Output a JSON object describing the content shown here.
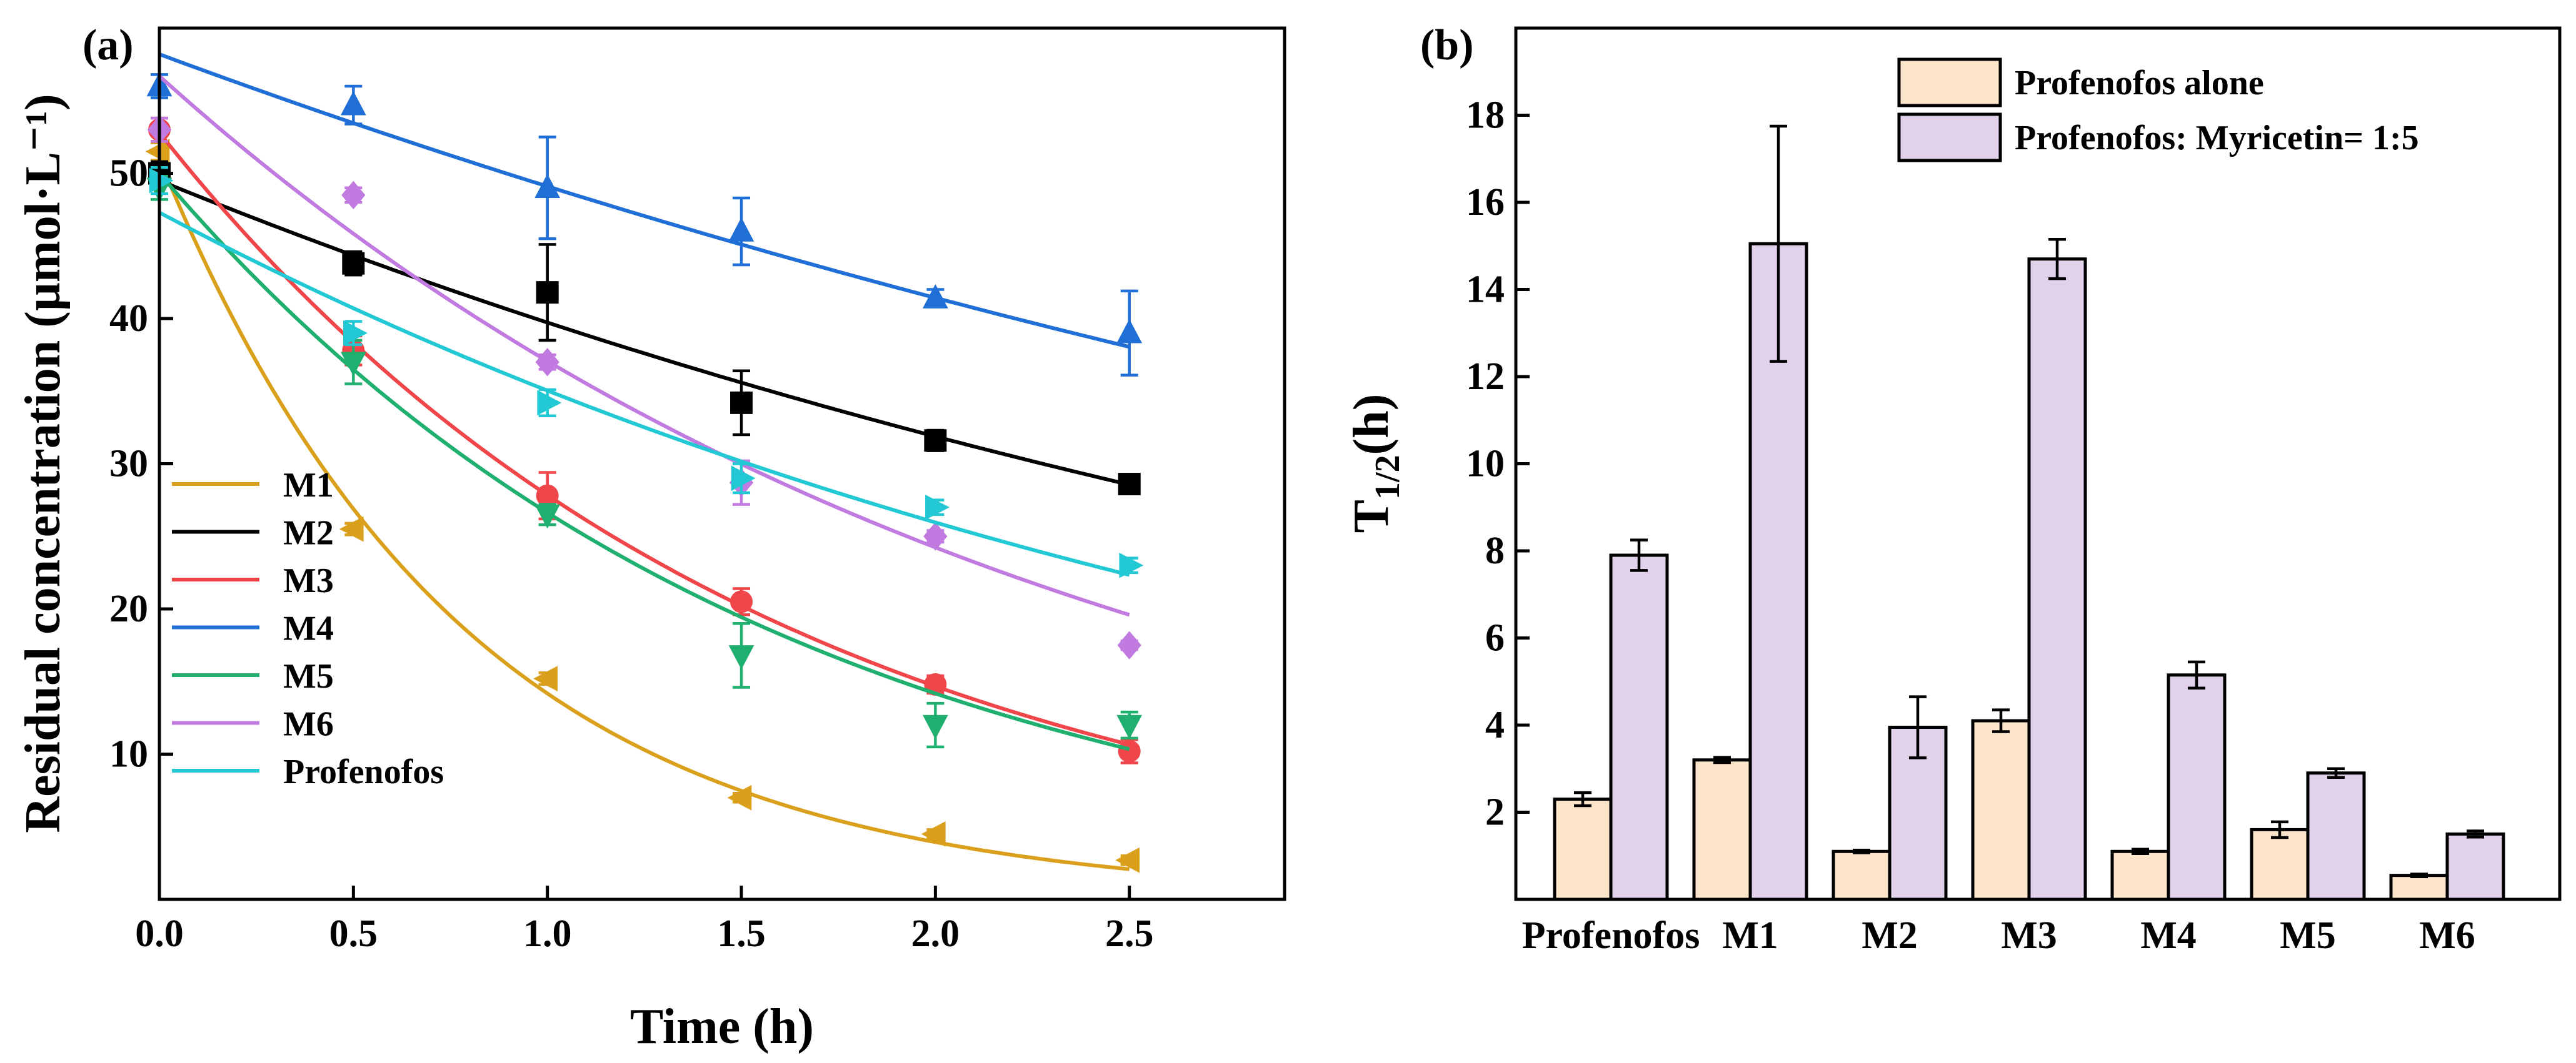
{
  "chart_data": [
    {
      "panel": "(a)",
      "type": "scatter",
      "xlabel": "Time (h)",
      "ylabel": "Residual concentration (µmol·L⁻¹)",
      "xlim": [
        0,
        2.9
      ],
      "ylim": [
        0,
        60
      ],
      "xticks": [
        0.0,
        0.5,
        1.0,
        1.5,
        2.0,
        2.5
      ],
      "xtick_labels": [
        "0.0",
        "0.5",
        "1.0",
        "1.5",
        "2.0",
        "2.5"
      ],
      "yticks": [
        10,
        20,
        30,
        40,
        50
      ],
      "ytick_labels": [
        "10",
        "20",
        "30",
        "40",
        "50"
      ],
      "legend_position": "bottom-left",
      "series": [
        {
          "name": "M1",
          "color": "#DAA01C",
          "marker": "triangle-left",
          "x": [
            0,
            0.5,
            1.0,
            1.5,
            2.0,
            2.5
          ],
          "y": [
            51.5,
            25.5,
            15.2,
            7.0,
            4.5,
            2.7
          ],
          "err": [
            0.6,
            0.4,
            0.4,
            0.3,
            0.3,
            0.3
          ],
          "fit": {
            "c0": 51.0,
            "k": 1.28
          }
        },
        {
          "name": "M2",
          "color": "#000000",
          "marker": "square",
          "x": [
            0,
            0.5,
            1.0,
            1.5,
            2.0,
            2.5
          ],
          "y": [
            50.0,
            43.8,
            41.8,
            34.2,
            31.6,
            28.6
          ],
          "err": [
            0.8,
            0.8,
            3.3,
            2.2,
            0.7,
            0.4
          ],
          "fit": {
            "c0": 49.5,
            "k": 0.22
          }
        },
        {
          "name": "M3",
          "color": "#F0464A",
          "marker": "circle",
          "x": [
            0,
            0.5,
            1.0,
            1.5,
            2.0,
            2.5
          ],
          "y": [
            53.0,
            37.8,
            27.8,
            20.5,
            14.8,
            10.2
          ],
          "err": [
            0.8,
            1.0,
            1.6,
            0.9,
            0.6,
            0.8
          ],
          "fit": {
            "c0": 52.8,
            "k": 0.64
          }
        },
        {
          "name": "M4",
          "color": "#1F6FD6",
          "marker": "triangle-up",
          "x": [
            0,
            0.5,
            1.0,
            1.5,
            2.0,
            2.5
          ],
          "y": [
            56.0,
            54.7,
            49.0,
            46.0,
            41.4,
            39.0
          ],
          "err": [
            0.8,
            1.3,
            3.5,
            2.3,
            0.6,
            2.9
          ],
          "fit": {
            "c0": 58.2,
            "k": 0.17
          }
        },
        {
          "name": "M5",
          "color": "#1FAF6E",
          "marker": "triangle-down",
          "x": [
            0,
            0.5,
            1.0,
            1.5,
            2.0,
            2.5
          ],
          "y": [
            49.0,
            37.0,
            26.5,
            16.8,
            12.0,
            12.0
          ],
          "err": [
            0.8,
            1.5,
            0.7,
            2.2,
            1.5,
            0.9
          ],
          "fit": {
            "c0": 50.0,
            "k": 0.63
          }
        },
        {
          "name": "M6",
          "color": "#C17BE0",
          "marker": "diamond",
          "x": [
            0,
            0.5,
            1.0,
            1.5,
            2.0,
            2.5
          ],
          "y": [
            53.0,
            48.5,
            37.0,
            28.7,
            25.0,
            17.5
          ],
          "err": [
            0.8,
            0.5,
            0.5,
            1.5,
            0.4,
            0.3
          ],
          "fit": {
            "c0": 56.7,
            "k": 0.425
          }
        },
        {
          "name": "Profenofos",
          "color": "#22C8D4",
          "marker": "triangle-right",
          "x": [
            0,
            0.5,
            1.0,
            1.5,
            2.0,
            2.5
          ],
          "y": [
            49.5,
            39.0,
            34.2,
            29.0,
            27.0,
            23.0
          ],
          "err": [
            0.9,
            0.8,
            0.9,
            1.0,
            0.5,
            0.5
          ],
          "fit": {
            "c0": 47.3,
            "k": 0.3
          }
        }
      ]
    },
    {
      "panel": "(b)",
      "type": "bar",
      "xlabel": "",
      "ylabel": "T1/2(h)",
      "ylabel_main": "T",
      "ylabel_sub": "1/2",
      "ylabel_suffix": "(h)",
      "ylim": [
        0,
        20
      ],
      "yticks": [
        2,
        4,
        6,
        8,
        10,
        12,
        14,
        16,
        18
      ],
      "ytick_labels": [
        "2",
        "4",
        "6",
        "8",
        "10",
        "12",
        "14",
        "16",
        "18"
      ],
      "categories": [
        "Profenofos",
        "M1",
        "M2",
        "M3",
        "M4",
        "M5",
        "M6"
      ],
      "legend_position": "top-right",
      "series": [
        {
          "name": "Profenofos alone",
          "color": "#FDE5CC",
          "values": [
            2.3,
            3.2,
            1.1,
            4.1,
            1.1,
            1.6,
            0.55
          ],
          "err": [
            0.15,
            0.06,
            0.03,
            0.25,
            0.05,
            0.18,
            0.03
          ]
        },
        {
          "name": "Profenofos: Myricetin= 1:5",
          "color": "#E1D1EA",
          "values": [
            7.9,
            15.05,
            3.95,
            14.7,
            5.15,
            2.9,
            1.5
          ],
          "err": [
            0.35,
            2.7,
            0.7,
            0.45,
            0.3,
            0.1,
            0.07
          ]
        }
      ]
    }
  ]
}
